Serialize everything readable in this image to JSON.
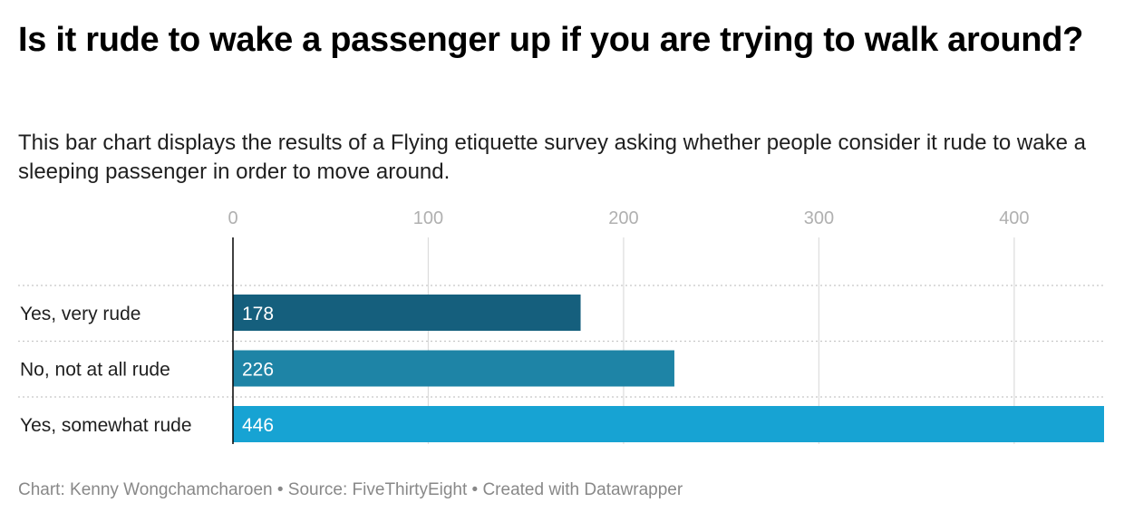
{
  "chart_data": {
    "type": "bar",
    "orientation": "horizontal",
    "title": "Is it rude to wake a passenger up if you are trying to walk around?",
    "subtitle": "This bar chart displays the results of a Flying etiquette survey asking whether people consider it rude to wake a sleeping passenger in order to move around.",
    "categories": [
      "Yes, very rude",
      "No, not at all rude",
      "Yes, somewhat rude"
    ],
    "values": [
      178,
      226,
      446
    ],
    "colors": [
      "#155f7d",
      "#1e84a6",
      "#17a3d3"
    ],
    "xlim": [
      0,
      446
    ],
    "xticks": [
      0,
      100,
      200,
      300,
      400
    ],
    "xlabel": "",
    "ylabel": "",
    "grid": true,
    "legend": "none"
  },
  "footer": "Chart: Kenny Wongchamcharoen • Source: FiveThirtyEight • Created with Datawrapper",
  "colors": {
    "gridline": "#dddddd",
    "separator": "#c8c8c8",
    "axis": "#000000"
  }
}
